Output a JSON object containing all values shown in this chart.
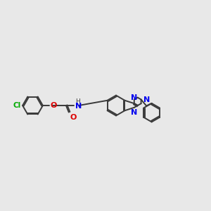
{
  "bg_color": "#e8e8e8",
  "bond_color": "#3a3a3a",
  "N_color": "#0000ee",
  "O_color": "#dd0000",
  "Cl_color": "#00aa00",
  "lw": 1.4,
  "xlim": [
    0,
    10
  ],
  "ylim": [
    2.5,
    7.5
  ]
}
